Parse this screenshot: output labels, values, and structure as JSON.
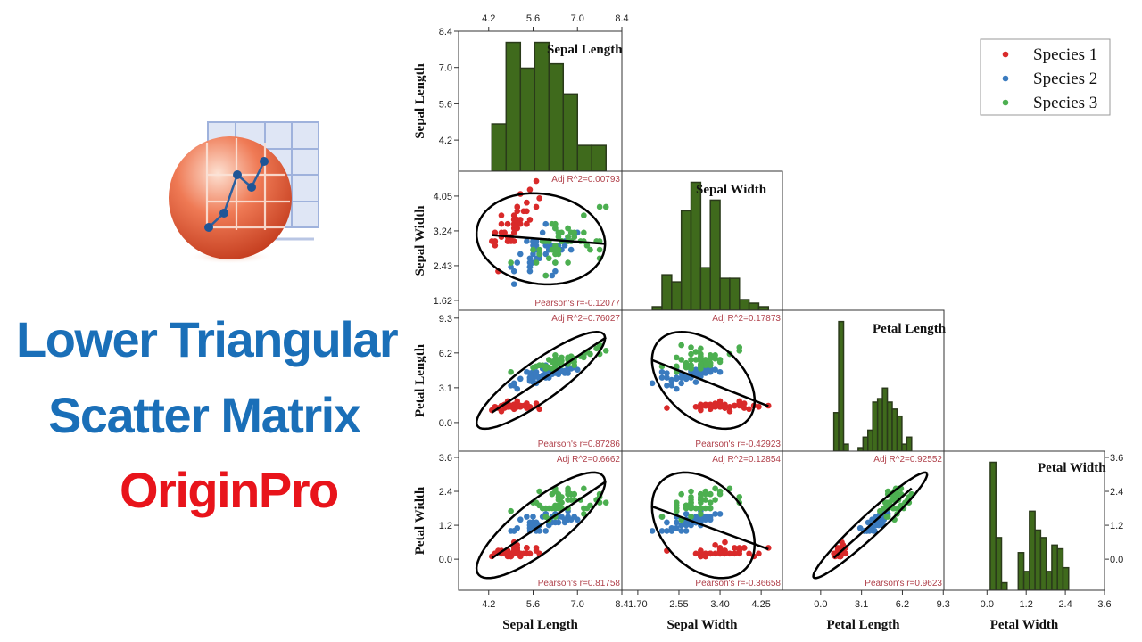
{
  "title": {
    "line1": "Lower Triangular",
    "line2": "Scatter Matrix",
    "line3": "OriginPro",
    "color_blue": "#1a6fb8",
    "color_red": "#e8141b"
  },
  "logo": {
    "icon": "originpro-logo-icon"
  },
  "chart_data": {
    "type": "scatter-matrix",
    "layout": "lower-triangular",
    "variables": [
      "Sepal Length",
      "Sepal Width",
      "Petal Length",
      "Petal Width"
    ],
    "x_axes": [
      {
        "label": "Sepal Length",
        "range": [
          3.25,
          8.4
        ],
        "ticks": [
          "4.2",
          "5.6",
          "7.0",
          "8.4"
        ]
      },
      {
        "label": "Sepal Width",
        "range": [
          1.37,
          4.69
        ],
        "ticks": [
          "1.70",
          "2.55",
          "3.40",
          "4.25"
        ]
      },
      {
        "label": "Petal Length",
        "range": [
          -2.9,
          9.35
        ],
        "ticks": [
          "0.0",
          "3.1",
          "6.2",
          "9.3"
        ]
      },
      {
        "label": "Petal Width",
        "range": [
          -1.32,
          3.6
        ],
        "ticks": [
          "0.0",
          "1.2",
          "2.4",
          "3.6"
        ]
      }
    ],
    "y_axes": [
      {
        "label": "Sepal Length",
        "range": [
          3.0,
          8.4
        ],
        "ticks": [
          "4.2",
          "5.6",
          "7.0",
          "8.4"
        ]
      },
      {
        "label": "Sepal Width",
        "range": [
          1.39,
          4.63
        ],
        "ticks": [
          "1.62",
          "2.43",
          "3.24",
          "4.05"
        ]
      },
      {
        "label": "Petal Length",
        "range": [
          -2.55,
          10.0
        ],
        "ticks": [
          "0.0",
          "3.1",
          "6.2",
          "9.3"
        ]
      },
      {
        "label": "Petal Width",
        "range": [
          -1.1,
          3.82
        ],
        "ticks": [
          "0.0",
          "1.2",
          "2.4",
          "3.6"
        ]
      }
    ],
    "top_axis_ticks": [
      "4.2",
      "5.6",
      "7.0",
      "8.4"
    ],
    "right_axis_ticks": [
      "0.0",
      "1.2",
      "2.4",
      "3.6"
    ],
    "diagonal": "histogram",
    "histogram_color": "#3f6a1c",
    "histogram_edge": "#2a3a1a",
    "ellipse": "confidence ellipse",
    "fit_line": "linear",
    "legend_position": "top-right",
    "stats": [
      {
        "row": 1,
        "col": 0,
        "adj_r2": "Adj R^2=0.00793",
        "pearson": "Pearson's r=-0.12077"
      },
      {
        "row": 2,
        "col": 0,
        "adj_r2": "Adj R^2=0.76027",
        "pearson": "Pearson's r=0.87286"
      },
      {
        "row": 2,
        "col": 1,
        "adj_r2": "Adj R^2=0.17873",
        "pearson": "Pearson's r=-0.42923"
      },
      {
        "row": 3,
        "col": 0,
        "adj_r2": "Adj R^2=0.6662",
        "pearson": "Pearson's r=0.81758"
      },
      {
        "row": 3,
        "col": 1,
        "adj_r2": "Adj R^2=0.12854",
        "pearson": "Pearson's r=-0.36658"
      },
      {
        "row": 3,
        "col": 2,
        "adj_r2": "Adj R^2=0.92552",
        "pearson": "Pearson's r=0.9623"
      }
    ],
    "series": [
      {
        "name": "Species 1",
        "color": "#d92a2a",
        "points": [
          [
            5.1,
            3.5,
            1.4,
            0.2
          ],
          [
            4.9,
            3.0,
            1.4,
            0.2
          ],
          [
            4.7,
            3.2,
            1.3,
            0.2
          ],
          [
            4.6,
            3.1,
            1.5,
            0.2
          ],
          [
            5.0,
            3.6,
            1.4,
            0.2
          ],
          [
            5.4,
            3.9,
            1.7,
            0.4
          ],
          [
            4.6,
            3.4,
            1.4,
            0.3
          ],
          [
            5.0,
            3.4,
            1.5,
            0.2
          ],
          [
            4.4,
            2.9,
            1.4,
            0.2
          ],
          [
            4.9,
            3.1,
            1.5,
            0.1
          ],
          [
            5.4,
            3.7,
            1.5,
            0.2
          ],
          [
            4.8,
            3.4,
            1.6,
            0.2
          ],
          [
            4.8,
            3.0,
            1.4,
            0.1
          ],
          [
            4.3,
            3.0,
            1.1,
            0.1
          ],
          [
            5.8,
            4.0,
            1.2,
            0.2
          ],
          [
            5.7,
            4.4,
            1.5,
            0.4
          ],
          [
            5.4,
            3.9,
            1.3,
            0.4
          ],
          [
            5.1,
            3.5,
            1.4,
            0.3
          ],
          [
            5.7,
            3.8,
            1.7,
            0.3
          ],
          [
            5.1,
            3.8,
            1.5,
            0.3
          ],
          [
            5.4,
            3.4,
            1.7,
            0.2
          ],
          [
            5.1,
            3.7,
            1.5,
            0.4
          ],
          [
            4.6,
            3.6,
            1.0,
            0.2
          ],
          [
            5.1,
            3.3,
            1.7,
            0.5
          ],
          [
            4.8,
            3.4,
            1.9,
            0.2
          ],
          [
            5.0,
            3.0,
            1.6,
            0.2
          ],
          [
            5.0,
            3.4,
            1.6,
            0.4
          ],
          [
            5.2,
            3.5,
            1.5,
            0.2
          ],
          [
            5.2,
            3.4,
            1.4,
            0.2
          ],
          [
            4.7,
            3.2,
            1.6,
            0.2
          ],
          [
            4.8,
            3.1,
            1.6,
            0.2
          ],
          [
            5.4,
            3.4,
            1.5,
            0.4
          ],
          [
            5.2,
            4.1,
            1.5,
            0.1
          ],
          [
            5.5,
            4.2,
            1.4,
            0.2
          ],
          [
            4.9,
            3.1,
            1.5,
            0.1
          ],
          [
            5.0,
            3.2,
            1.2,
            0.2
          ],
          [
            5.5,
            3.5,
            1.3,
            0.2
          ],
          [
            4.9,
            3.1,
            1.5,
            0.1
          ],
          [
            4.4,
            3.0,
            1.3,
            0.2
          ],
          [
            5.1,
            3.4,
            1.5,
            0.2
          ],
          [
            5.0,
            3.5,
            1.3,
            0.3
          ],
          [
            4.5,
            2.3,
            1.3,
            0.3
          ],
          [
            4.4,
            3.2,
            1.3,
            0.2
          ],
          [
            5.0,
            3.5,
            1.6,
            0.6
          ],
          [
            5.1,
            3.8,
            1.9,
            0.4
          ],
          [
            4.8,
            3.0,
            1.4,
            0.3
          ],
          [
            5.1,
            3.8,
            1.6,
            0.2
          ],
          [
            4.6,
            3.2,
            1.4,
            0.2
          ],
          [
            5.3,
            3.7,
            1.5,
            0.2
          ],
          [
            5.0,
            3.3,
            1.4,
            0.2
          ]
        ]
      },
      {
        "name": "Species 2",
        "color": "#3a7bbf",
        "points": [
          [
            7.0,
            3.2,
            4.7,
            1.4
          ],
          [
            6.4,
            3.2,
            4.5,
            1.5
          ],
          [
            6.9,
            3.1,
            4.9,
            1.5
          ],
          [
            5.5,
            2.3,
            4.0,
            1.3
          ],
          [
            6.5,
            2.8,
            4.6,
            1.5
          ],
          [
            5.7,
            2.8,
            4.5,
            1.3
          ],
          [
            6.3,
            3.3,
            4.7,
            1.6
          ],
          [
            4.9,
            2.4,
            3.3,
            1.0
          ],
          [
            6.6,
            2.9,
            4.6,
            1.3
          ],
          [
            5.2,
            2.7,
            3.9,
            1.4
          ],
          [
            5.0,
            2.0,
            3.5,
            1.0
          ],
          [
            5.9,
            3.0,
            4.2,
            1.5
          ],
          [
            6.0,
            2.2,
            4.0,
            1.0
          ],
          [
            6.1,
            2.9,
            4.7,
            1.4
          ],
          [
            5.6,
            2.9,
            3.6,
            1.3
          ],
          [
            6.7,
            3.1,
            4.4,
            1.4
          ],
          [
            5.6,
            3.0,
            4.5,
            1.5
          ],
          [
            5.8,
            2.7,
            4.1,
            1.0
          ],
          [
            6.2,
            2.2,
            4.5,
            1.5
          ],
          [
            5.6,
            2.5,
            3.9,
            1.1
          ],
          [
            5.9,
            3.2,
            4.8,
            1.8
          ],
          [
            6.1,
            2.8,
            4.0,
            1.3
          ],
          [
            6.3,
            2.5,
            4.9,
            1.5
          ],
          [
            6.1,
            2.8,
            4.7,
            1.2
          ],
          [
            6.4,
            2.9,
            4.3,
            1.3
          ],
          [
            6.6,
            3.0,
            4.4,
            1.4
          ],
          [
            6.8,
            2.8,
            4.8,
            1.4
          ],
          [
            6.7,
            3.0,
            5.0,
            1.7
          ],
          [
            6.0,
            2.9,
            4.5,
            1.5
          ],
          [
            5.7,
            2.6,
            3.5,
            1.0
          ],
          [
            5.5,
            2.4,
            3.8,
            1.1
          ],
          [
            5.5,
            2.4,
            3.7,
            1.0
          ],
          [
            5.8,
            2.7,
            3.9,
            1.2
          ],
          [
            6.0,
            2.7,
            5.1,
            1.6
          ],
          [
            5.4,
            3.0,
            4.5,
            1.5
          ],
          [
            6.0,
            3.4,
            4.5,
            1.6
          ],
          [
            6.7,
            3.1,
            4.7,
            1.5
          ],
          [
            6.3,
            2.3,
            4.4,
            1.3
          ],
          [
            5.6,
            3.0,
            4.1,
            1.3
          ],
          [
            5.5,
            2.5,
            4.0,
            1.3
          ],
          [
            5.5,
            2.6,
            4.4,
            1.2
          ],
          [
            6.1,
            3.0,
            4.6,
            1.4
          ],
          [
            5.8,
            2.6,
            4.0,
            1.2
          ],
          [
            5.0,
            2.3,
            3.3,
            1.0
          ],
          [
            5.6,
            2.7,
            4.2,
            1.3
          ],
          [
            5.7,
            3.0,
            4.2,
            1.2
          ],
          [
            5.7,
            2.9,
            4.2,
            1.3
          ],
          [
            6.2,
            2.9,
            4.3,
            1.3
          ],
          [
            5.1,
            2.5,
            3.0,
            1.1
          ],
          [
            5.7,
            2.8,
            4.1,
            1.3
          ]
        ]
      },
      {
        "name": "Species 3",
        "color": "#4caf50",
        "points": [
          [
            6.3,
            3.3,
            6.0,
            2.5
          ],
          [
            5.8,
            2.7,
            5.1,
            1.9
          ],
          [
            7.1,
            3.0,
            5.9,
            2.1
          ],
          [
            6.3,
            2.9,
            5.6,
            1.8
          ],
          [
            6.5,
            3.0,
            5.8,
            2.2
          ],
          [
            7.6,
            3.0,
            6.6,
            2.1
          ],
          [
            4.9,
            2.5,
            4.5,
            1.7
          ],
          [
            7.3,
            2.9,
            6.3,
            1.8
          ],
          [
            6.7,
            2.5,
            5.8,
            1.8
          ],
          [
            7.2,
            3.6,
            6.1,
            2.5
          ],
          [
            6.5,
            3.2,
            5.1,
            2.0
          ],
          [
            6.4,
            2.7,
            5.3,
            1.9
          ],
          [
            6.8,
            3.0,
            5.5,
            2.1
          ],
          [
            5.7,
            2.5,
            5.0,
            2.0
          ],
          [
            5.8,
            2.8,
            5.1,
            2.4
          ],
          [
            6.4,
            3.2,
            5.3,
            2.3
          ],
          [
            6.5,
            3.0,
            5.5,
            1.8
          ],
          [
            7.7,
            3.8,
            6.7,
            2.2
          ],
          [
            7.7,
            2.6,
            6.9,
            2.3
          ],
          [
            6.0,
            2.2,
            5.0,
            1.5
          ],
          [
            6.9,
            3.2,
            5.7,
            2.3
          ],
          [
            5.6,
            2.8,
            4.9,
            2.0
          ],
          [
            7.7,
            2.8,
            6.7,
            2.0
          ],
          [
            6.3,
            2.7,
            4.9,
            1.8
          ],
          [
            6.7,
            3.3,
            5.7,
            2.1
          ],
          [
            7.2,
            3.2,
            6.0,
            1.8
          ],
          [
            6.2,
            2.8,
            4.8,
            1.8
          ],
          [
            6.1,
            3.0,
            4.9,
            1.8
          ],
          [
            6.4,
            2.8,
            5.6,
            2.1
          ],
          [
            7.2,
            3.0,
            5.8,
            1.6
          ],
          [
            7.4,
            2.8,
            6.1,
            1.9
          ],
          [
            7.9,
            3.8,
            6.4,
            2.0
          ],
          [
            6.4,
            2.8,
            5.6,
            2.2
          ],
          [
            6.3,
            2.8,
            5.1,
            1.5
          ],
          [
            6.1,
            2.6,
            5.6,
            1.4
          ],
          [
            7.7,
            3.0,
            6.1,
            2.3
          ],
          [
            6.3,
            3.4,
            5.6,
            2.4
          ],
          [
            6.4,
            3.1,
            5.5,
            1.8
          ],
          [
            6.0,
            3.0,
            4.8,
            1.8
          ],
          [
            6.9,
            3.1,
            5.4,
            2.1
          ],
          [
            6.7,
            3.1,
            5.6,
            2.4
          ],
          [
            6.9,
            3.1,
            5.1,
            2.3
          ],
          [
            5.8,
            2.7,
            5.1,
            1.9
          ],
          [
            6.8,
            3.2,
            5.9,
            2.3
          ],
          [
            6.7,
            3.3,
            5.7,
            2.5
          ],
          [
            6.7,
            3.0,
            5.2,
            2.3
          ],
          [
            6.3,
            2.5,
            5.0,
            1.9
          ],
          [
            6.5,
            3.0,
            5.2,
            2.0
          ],
          [
            6.2,
            3.4,
            5.4,
            2.3
          ],
          [
            5.9,
            3.0,
            5.1,
            1.8
          ]
        ]
      }
    ]
  }
}
